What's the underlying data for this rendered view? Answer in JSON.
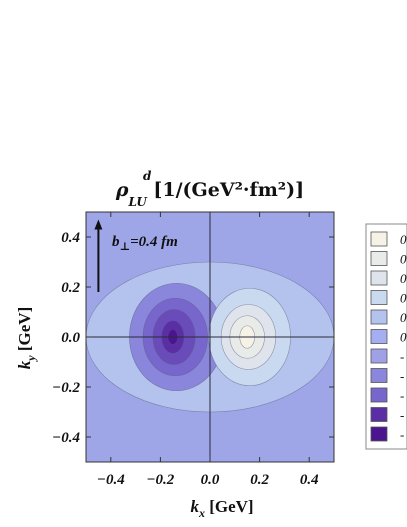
{
  "chart_data": {
    "type": "contour",
    "title": {
      "rho": "ρ",
      "sup": "d",
      "sub": "LU",
      "units": " [1/(GeV²·fm²)]"
    },
    "xlabel": {
      "main": "k",
      "sub": "x",
      "units": " [GeV]"
    },
    "ylabel": {
      "main": "k",
      "sub": "y",
      "units": " [GeV]"
    },
    "xlim": [
      -0.5,
      0.5
    ],
    "ylim": [
      -0.5,
      0.5
    ],
    "xticks": [
      {
        "value": -0.4,
        "label": "−0.4"
      },
      {
        "value": -0.2,
        "label": "−0.2"
      },
      {
        "value": 0.0,
        "label": "0.0"
      },
      {
        "value": 0.2,
        "label": "0.2"
      },
      {
        "value": 0.4,
        "label": "0.4"
      }
    ],
    "yticks": [
      {
        "value": 0.4,
        "label": "0.4"
      },
      {
        "value": 0.2,
        "label": "0.2"
      },
      {
        "value": 0.0,
        "label": "0.0"
      },
      {
        "value": -0.2,
        "label": "−0.2"
      },
      {
        "value": -0.4,
        "label": "−0.4"
      }
    ],
    "annotation": {
      "text_main": "b",
      "text_sub": "⊥",
      "text_rest": "=0.4 fm",
      "arrow_from": [
        -0.45,
        0.18
      ],
      "arrow_to": [
        -0.45,
        0.47
      ]
    },
    "extrema": [
      {
        "kind": "min",
        "x": -0.15,
        "y": 0.0
      },
      {
        "kind": "max",
        "x": 0.15,
        "y": 0.0
      }
    ],
    "levels": [
      {
        "color": "#f7f2e6",
        "cx": 0.15,
        "rx": 0.03,
        "ry": 0.045
      },
      {
        "color": "#e9ebe9",
        "cx": 0.15,
        "rx": 0.07,
        "ry": 0.085
      },
      {
        "color": "#dfe4ec",
        "cx": 0.155,
        "rx": 0.11,
        "ry": 0.13
      },
      {
        "color": "#c9daf0",
        "cx": 0.16,
        "rx": 0.165,
        "ry": 0.195
      },
      {
        "color": "#b3c3ee",
        "cx": 0.0,
        "rx": 0.5,
        "ry": 0.3
      },
      {
        "color": "#9fa6e8",
        "cx": 0.0,
        "rx": 1.0,
        "ry": 1.0
      },
      {
        "color": "#8986db",
        "cx": -0.135,
        "rx": 0.19,
        "ry": 0.215
      },
      {
        "color": "#7766cb",
        "cx": -0.14,
        "rx": 0.13,
        "ry": 0.155
      },
      {
        "color": "#6a4bba",
        "cx": -0.145,
        "rx": 0.085,
        "ry": 0.11
      },
      {
        "color": "#5a2ea5",
        "cx": -0.15,
        "rx": 0.045,
        "ry": 0.065
      },
      {
        "color": "#4b1590",
        "cx": -0.15,
        "rx": 0.02,
        "ry": 0.03
      }
    ],
    "legend": {
      "position": "right",
      "entries": [
        {
          "color": "#f7f2e6",
          "label": "0"
        },
        {
          "color": "#e9ebe9",
          "label": "0"
        },
        {
          "color": "#dfe4ec",
          "label": "0"
        },
        {
          "color": "#c9daf0",
          "label": "0"
        },
        {
          "color": "#b3c3ee",
          "label": "0"
        },
        {
          "color": "#a4aef0",
          "label": "0"
        },
        {
          "color": "#9fa0e6",
          "label": "-"
        },
        {
          "color": "#8986db",
          "label": "-"
        },
        {
          "color": "#7766cb",
          "label": "-"
        },
        {
          "color": "#5a2ea5",
          "label": "-"
        },
        {
          "color": "#4b1590",
          "label": "-"
        }
      ]
    },
    "grid": false
  }
}
